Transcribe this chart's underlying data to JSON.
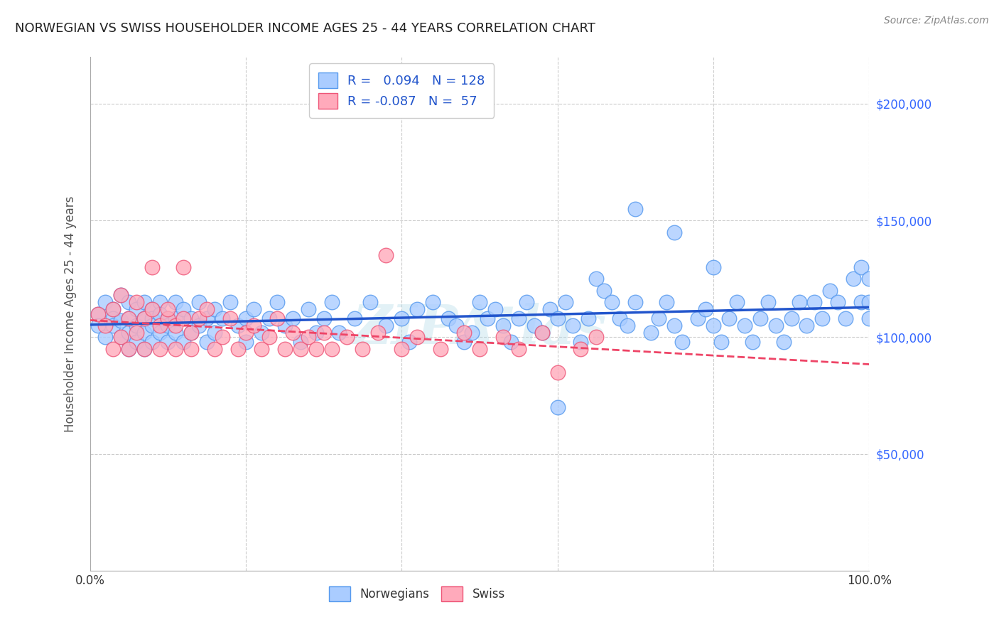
{
  "title": "NORWEGIAN VS SWISS HOUSEHOLDER INCOME AGES 25 - 44 YEARS CORRELATION CHART",
  "source": "Source: ZipAtlas.com",
  "ylabel": "Householder Income Ages 25 - 44 years",
  "background_color": "#ffffff",
  "grid_color": "#cccccc",
  "norwegian_color": "#aaccff",
  "norwegian_edge": "#5599ee",
  "swiss_color": "#ffaabb",
  "swiss_edge": "#ee5577",
  "trend_norwegian_color": "#2255cc",
  "trend_swiss_color": "#ee4466",
  "r_norwegian": 0.094,
  "n_norwegian": 128,
  "r_swiss": -0.087,
  "n_swiss": 57,
  "xmin": 0.0,
  "xmax": 1.0,
  "ymin": 0,
  "ymax": 220000,
  "yticks": [
    0,
    50000,
    100000,
    150000,
    200000
  ],
  "ytick_labels": [
    "",
    "$50,000",
    "$100,000",
    "$150,000",
    "$200,000"
  ],
  "xtick_labels": [
    "0.0%",
    "",
    "",
    "",
    "",
    "",
    "",
    "",
    "",
    "",
    "100.0%"
  ],
  "watermark": "ZIPAtlas",
  "norwegian_x": [
    0.01,
    0.01,
    0.02,
    0.02,
    0.03,
    0.03,
    0.03,
    0.04,
    0.04,
    0.04,
    0.05,
    0.05,
    0.05,
    0.05,
    0.06,
    0.06,
    0.06,
    0.07,
    0.07,
    0.07,
    0.07,
    0.08,
    0.08,
    0.08,
    0.08,
    0.09,
    0.09,
    0.09,
    0.1,
    0.1,
    0.1,
    0.11,
    0.11,
    0.11,
    0.12,
    0.12,
    0.13,
    0.13,
    0.14,
    0.14,
    0.15,
    0.15,
    0.16,
    0.16,
    0.17,
    0.18,
    0.19,
    0.2,
    0.2,
    0.21,
    0.22,
    0.23,
    0.24,
    0.25,
    0.26,
    0.27,
    0.28,
    0.29,
    0.3,
    0.31,
    0.32,
    0.34,
    0.36,
    0.38,
    0.4,
    0.41,
    0.42,
    0.44,
    0.46,
    0.47,
    0.48,
    0.49,
    0.5,
    0.51,
    0.52,
    0.53,
    0.54,
    0.55,
    0.56,
    0.57,
    0.58,
    0.59,
    0.6,
    0.61,
    0.62,
    0.63,
    0.64,
    0.65,
    0.66,
    0.67,
    0.68,
    0.69,
    0.7,
    0.72,
    0.73,
    0.74,
    0.75,
    0.76,
    0.78,
    0.79,
    0.8,
    0.81,
    0.82,
    0.83,
    0.84,
    0.85,
    0.86,
    0.87,
    0.88,
    0.89,
    0.9,
    0.91,
    0.92,
    0.93,
    0.94,
    0.95,
    0.96,
    0.97,
    0.98,
    0.99,
    0.99,
    1.0,
    1.0,
    1.0,
    0.6,
    0.7,
    0.75,
    0.8
  ],
  "norwegian_y": [
    110000,
    105000,
    115000,
    100000,
    112000,
    108000,
    105000,
    118000,
    107000,
    100000,
    115000,
    108000,
    102000,
    95000,
    112000,
    105000,
    98000,
    115000,
    108000,
    102000,
    95000,
    112000,
    108000,
    105000,
    98000,
    115000,
    110000,
    102000,
    108000,
    105000,
    98000,
    115000,
    108000,
    102000,
    112000,
    98000,
    108000,
    102000,
    115000,
    105000,
    108000,
    98000,
    112000,
    102000,
    108000,
    115000,
    105000,
    108000,
    98000,
    112000,
    102000,
    108000,
    115000,
    105000,
    108000,
    98000,
    112000,
    102000,
    108000,
    115000,
    102000,
    108000,
    115000,
    105000,
    108000,
    98000,
    112000,
    115000,
    108000,
    105000,
    98000,
    102000,
    115000,
    108000,
    112000,
    105000,
    98000,
    108000,
    115000,
    105000,
    102000,
    112000,
    108000,
    115000,
    105000,
    98000,
    108000,
    125000,
    120000,
    115000,
    108000,
    105000,
    115000,
    102000,
    108000,
    115000,
    105000,
    98000,
    108000,
    112000,
    105000,
    98000,
    108000,
    115000,
    105000,
    98000,
    108000,
    115000,
    105000,
    98000,
    108000,
    115000,
    105000,
    115000,
    108000,
    120000,
    115000,
    108000,
    125000,
    115000,
    130000,
    125000,
    115000,
    108000,
    70000,
    155000,
    145000,
    130000
  ],
  "swiss_x": [
    0.01,
    0.02,
    0.03,
    0.03,
    0.04,
    0.04,
    0.05,
    0.05,
    0.06,
    0.06,
    0.07,
    0.07,
    0.08,
    0.08,
    0.09,
    0.09,
    0.1,
    0.1,
    0.11,
    0.11,
    0.12,
    0.12,
    0.13,
    0.13,
    0.14,
    0.15,
    0.16,
    0.17,
    0.18,
    0.19,
    0.2,
    0.21,
    0.22,
    0.23,
    0.24,
    0.25,
    0.26,
    0.27,
    0.28,
    0.29,
    0.3,
    0.31,
    0.33,
    0.35,
    0.37,
    0.38,
    0.4,
    0.42,
    0.45,
    0.48,
    0.5,
    0.53,
    0.55,
    0.58,
    0.6,
    0.63,
    0.65
  ],
  "swiss_y": [
    110000,
    105000,
    112000,
    95000,
    118000,
    100000,
    108000,
    95000,
    115000,
    102000,
    108000,
    95000,
    112000,
    130000,
    105000,
    95000,
    108000,
    112000,
    95000,
    105000,
    130000,
    108000,
    95000,
    102000,
    108000,
    112000,
    95000,
    100000,
    108000,
    95000,
    102000,
    105000,
    95000,
    100000,
    108000,
    95000,
    102000,
    95000,
    100000,
    95000,
    102000,
    95000,
    100000,
    95000,
    102000,
    135000,
    95000,
    100000,
    95000,
    102000,
    95000,
    100000,
    95000,
    102000,
    85000,
    95000,
    100000
  ]
}
